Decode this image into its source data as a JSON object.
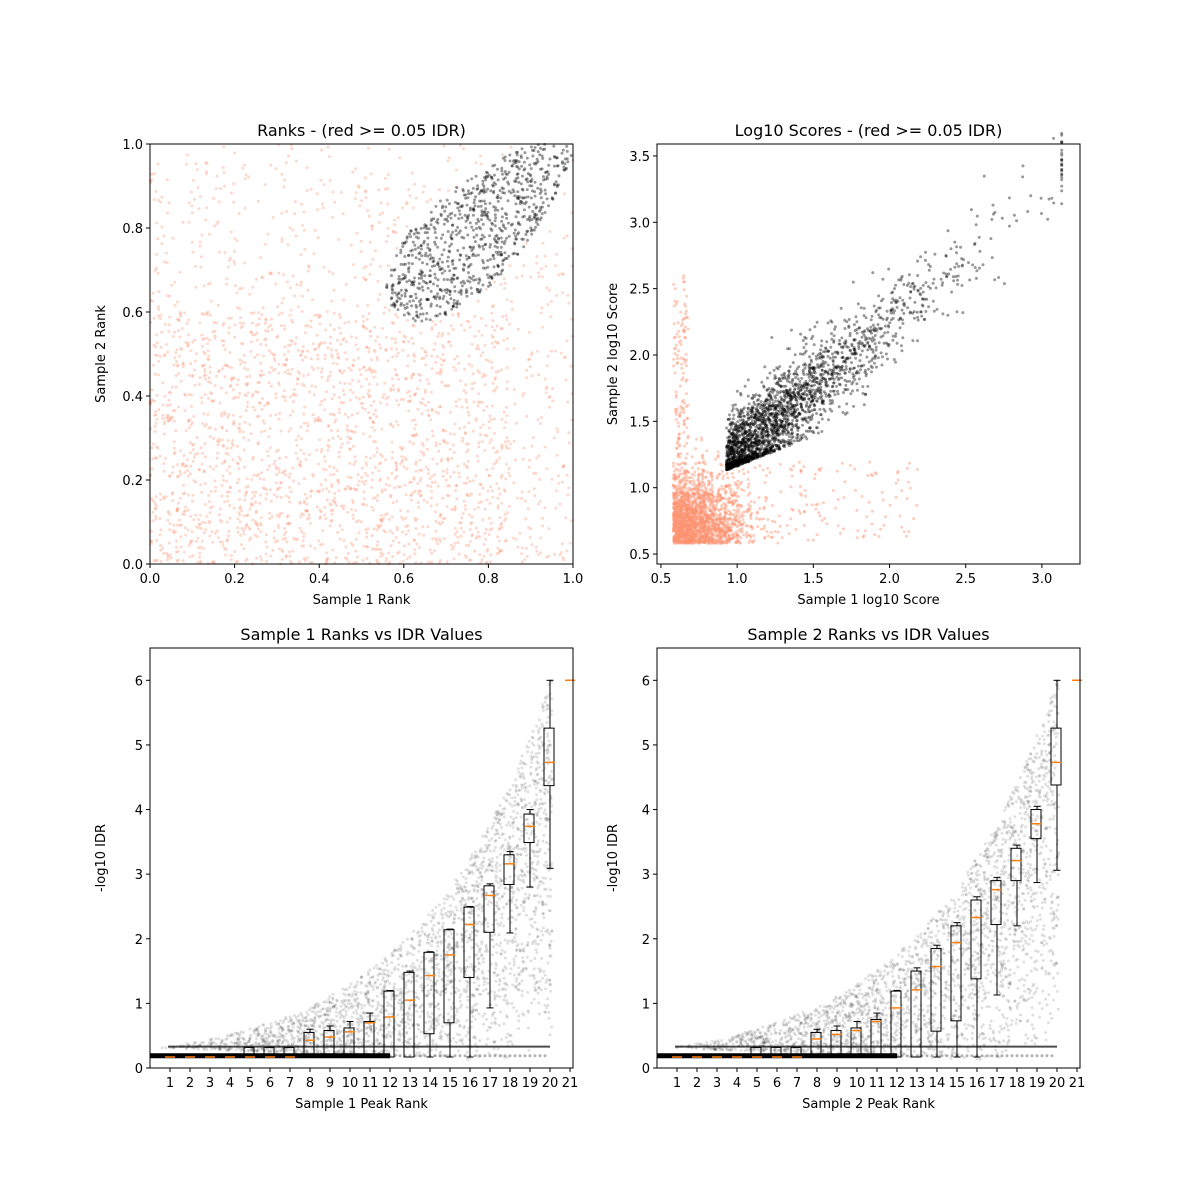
{
  "chart_data": [
    {
      "type": "scatter",
      "title": "Ranks - (red >= 0.05 IDR)",
      "xlabel": "Sample 1 Rank",
      "ylabel": "Sample 2 Rank",
      "xlim": [
        0,
        1
      ],
      "ylim": [
        0,
        1
      ],
      "xticks": [
        "0.0",
        "0.2",
        "0.4",
        "0.6",
        "0.8",
        "1.0"
      ],
      "yticks": [
        "0.0",
        "0.2",
        "0.4",
        "0.6",
        "0.8",
        "1.0"
      ],
      "series": [
        {
          "name": "IDR >= 0.05",
          "color": "#fc9272",
          "description_region": "whole unit square outside black region"
        },
        {
          "name": "IDR < 0.05",
          "color": "#000000",
          "region_lower_tip": [
            0.61,
            0.57
          ],
          "region_upper": [
            1.0,
            1.0
          ]
        }
      ]
    },
    {
      "type": "scatter",
      "title": "Log10 Scores - (red >= 0.05 IDR)",
      "xlabel": "Sample 1 log10 Score",
      "ylabel": "Sample 2 log10 Score",
      "xlim": [
        0.47,
        3.25
      ],
      "ylim": [
        0.43,
        3.59
      ],
      "xticks": [
        "0.5",
        "1.0",
        "1.5",
        "2.0",
        "2.5",
        "3.0"
      ],
      "yticks": [
        "0.5",
        "1.0",
        "1.5",
        "2.0",
        "2.5",
        "3.0",
        "3.5"
      ],
      "series": [
        {
          "name": "IDR >= 0.05",
          "color": "#fc9272",
          "x_range": [
            0.58,
            2.6
          ],
          "y_range": [
            0.58,
            2.9
          ]
        },
        {
          "name": "IDR < 0.05",
          "color": "#000000",
          "x_range": [
            0.93,
            3.1
          ],
          "y_range": [
            1.13,
            3.45
          ]
        }
      ]
    },
    {
      "type": "box",
      "title": "Sample 1 Ranks vs IDR Values",
      "xlabel": "Sample 1 Peak Rank",
      "ylabel": "-log10 IDR",
      "ylim": [
        0,
        6.5
      ],
      "xticks": [
        "1",
        "2",
        "3",
        "4",
        "5",
        "6",
        "7",
        "8",
        "9",
        "10",
        "11",
        "12",
        "13",
        "14",
        "15",
        "16",
        "17",
        "18",
        "19",
        "20",
        "21"
      ],
      "yticks": [
        "0",
        "1",
        "2",
        "3",
        "4",
        "5",
        "6"
      ],
      "median": [
        0.17,
        0.17,
        0.17,
        0.17,
        0.17,
        0.17,
        0.17,
        0.43,
        0.48,
        0.56,
        0.7,
        0.79,
        1.05,
        1.43,
        1.75,
        2.22,
        2.67,
        3.16,
        3.74,
        4.73,
        6.0
      ],
      "q1": [
        0.17,
        0.17,
        0.17,
        0.17,
        0.17,
        0.17,
        0.17,
        0.17,
        0.17,
        0.17,
        0.17,
        0.17,
        0.17,
        0.53,
        0.7,
        1.4,
        2.1,
        2.84,
        3.49,
        4.37,
        6.0
      ],
      "q3": [
        0.17,
        0.17,
        0.17,
        0.17,
        0.32,
        0.32,
        0.32,
        0.55,
        0.58,
        0.62,
        0.72,
        1.19,
        1.48,
        1.79,
        2.14,
        2.49,
        2.82,
        3.3,
        3.93,
        5.26,
        6.0
      ],
      "whisker_low": [
        0.17,
        0.17,
        0.17,
        0.17,
        0.17,
        0.17,
        0.17,
        0.17,
        0.17,
        0.17,
        0.17,
        0.17,
        0.17,
        0.17,
        0.17,
        0.17,
        0.93,
        2.09,
        2.8,
        3.09,
        6.0
      ],
      "whisker_high": [
        0.17,
        0.17,
        0.17,
        0.17,
        0.32,
        0.32,
        0.32,
        0.6,
        0.65,
        0.72,
        0.85,
        1.2,
        1.5,
        1.8,
        2.15,
        2.5,
        2.85,
        3.35,
        4.0,
        6.0,
        6.0
      ]
    },
    {
      "type": "box",
      "title": "Sample 2 Ranks vs IDR Values",
      "xlabel": "Sample 2 Peak Rank",
      "ylabel": "-log10 IDR",
      "ylim": [
        0,
        6.5
      ],
      "xticks": [
        "1",
        "2",
        "3",
        "4",
        "5",
        "6",
        "7",
        "8",
        "9",
        "10",
        "11",
        "12",
        "13",
        "14",
        "15",
        "16",
        "17",
        "18",
        "19",
        "20",
        "21"
      ],
      "yticks": [
        "0",
        "1",
        "2",
        "3",
        "4",
        "5",
        "6"
      ],
      "median": [
        0.17,
        0.17,
        0.17,
        0.17,
        0.17,
        0.17,
        0.17,
        0.45,
        0.52,
        0.58,
        0.72,
        0.93,
        1.21,
        1.57,
        1.94,
        2.33,
        2.76,
        3.21,
        3.78,
        4.73,
        6.0
      ],
      "q1": [
        0.17,
        0.17,
        0.17,
        0.17,
        0.17,
        0.17,
        0.17,
        0.17,
        0.17,
        0.17,
        0.17,
        0.17,
        0.17,
        0.57,
        0.73,
        1.38,
        2.22,
        2.9,
        3.55,
        4.38,
        6.0
      ],
      "q3": [
        0.17,
        0.17,
        0.17,
        0.17,
        0.32,
        0.32,
        0.32,
        0.55,
        0.58,
        0.62,
        0.75,
        1.19,
        1.5,
        1.85,
        2.2,
        2.6,
        2.9,
        3.4,
        4.0,
        5.26,
        6.0
      ],
      "whisker_low": [
        0.17,
        0.17,
        0.17,
        0.17,
        0.17,
        0.17,
        0.17,
        0.17,
        0.17,
        0.17,
        0.17,
        0.17,
        0.17,
        0.17,
        0.17,
        0.17,
        1.13,
        2.2,
        2.87,
        3.06,
        6.0
      ],
      "whisker_high": [
        0.17,
        0.17,
        0.17,
        0.17,
        0.32,
        0.32,
        0.32,
        0.6,
        0.65,
        0.72,
        0.85,
        1.2,
        1.55,
        1.9,
        2.25,
        2.65,
        2.95,
        3.45,
        4.05,
        6.0,
        6.0
      ]
    }
  ]
}
